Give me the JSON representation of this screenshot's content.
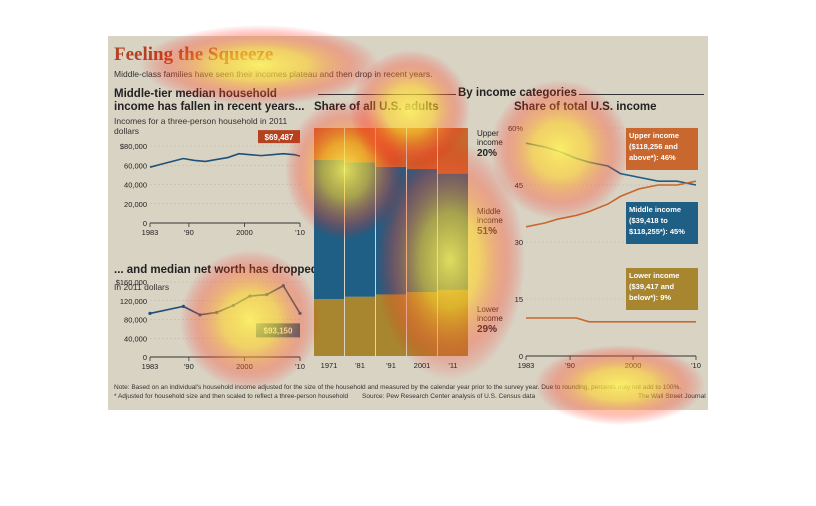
{
  "header": {
    "title": "Feeling the Squeeze",
    "subtitle": "Middle-class families have seen their incomes plateau and then drop in recent years."
  },
  "income_panel": {
    "heading": "Middle-tier median household income has fallen in recent years...",
    "unit": "Incomes for a three-person household in 2011 dollars"
  },
  "networth_panel": {
    "heading": "... and median net worth has dropped",
    "unit": "In 2011 dollars"
  },
  "categories_header": "By income categories",
  "share_panel": {
    "heading": "Share of all U.S. adults"
  },
  "total_panel": {
    "heading": "Share of total U.S. income"
  },
  "footer": {
    "note": "Note: Based on an individual's household income adjusted for the size of the household and measured by the calendar year prior to the survey year. Due to rounding, percents may not add to 100%.",
    "footnote": "* Adjusted for household size and then scaled to reflect a three-person household",
    "source": "Source: Pew Research Center analysis of U.S. Census data",
    "credit": "The Wall Street Journal"
  },
  "colors": {
    "background": "#d9d3c4",
    "income_line": "#1f4f7a",
    "upper": "#c8672e",
    "middle": "#1f5f85",
    "lower": "#a8862f",
    "callout": "#b4411f"
  },
  "chart_data": [
    {
      "type": "line",
      "title": "Middle-tier median household income has fallen in recent years...",
      "ylabel": "Incomes for a three-person household in 2011 dollars",
      "x": [
        1983,
        1985,
        1987,
        1989,
        1991,
        1993,
        1995,
        1997,
        1999,
        2001,
        2003,
        2005,
        2007,
        2009,
        2010
      ],
      "values": [
        58000,
        61000,
        64000,
        67000,
        65000,
        64000,
        66000,
        68000,
        72000,
        71000,
        70000,
        71000,
        72000,
        71000,
        69487
      ],
      "ylim": [
        0,
        80000
      ],
      "yticks": [
        "0",
        "20,000",
        "40,000",
        "60,000",
        "$80,000"
      ],
      "xticks": [
        "1983",
        "'90",
        "2000",
        "'10"
      ],
      "annotation": "$69,487"
    },
    {
      "type": "line",
      "title": "... and median net worth has dropped",
      "ylabel": "In 2011 dollars",
      "x": [
        1983,
        1989,
        1992,
        1995,
        1998,
        2001,
        2004,
        2007,
        2010
      ],
      "values": [
        93000,
        108000,
        90000,
        95000,
        110000,
        130000,
        133000,
        152000,
        93150
      ],
      "ylim": [
        0,
        160000
      ],
      "yticks": [
        "0",
        "40,000",
        "80,000",
        "120,000",
        "$160,000"
      ],
      "xticks": [
        "1983",
        "'90",
        "2000",
        "'10"
      ],
      "annotation": "$93,150"
    },
    {
      "type": "bar",
      "stacked": true,
      "title": "Share of all U.S. adults",
      "categories": [
        "1971",
        "'81",
        "'91",
        "2001",
        "'11"
      ],
      "series": [
        {
          "name": "Lower income",
          "values": [
            25,
            26,
            27,
            28,
            29
          ]
        },
        {
          "name": "Middle income",
          "values": [
            61,
            59,
            56,
            54,
            51
          ]
        },
        {
          "name": "Upper income",
          "values": [
            14,
            15,
            17,
            18,
            20
          ]
        }
      ],
      "labels": [
        {
          "name": "Upper income",
          "value": "20%"
        },
        {
          "name": "Middle income",
          "value": "51%"
        },
        {
          "name": "Lower income",
          "value": "29%"
        }
      ]
    },
    {
      "type": "line",
      "title": "Share of total U.S. income",
      "x": [
        1983,
        1986,
        1988,
        1991,
        1993,
        1996,
        1998,
        2001,
        2004,
        2007,
        2010
      ],
      "series": [
        {
          "name": "Middle income ($39,418 to $118,255*): 45%",
          "values": [
            56,
            55,
            54,
            52,
            51,
            50,
            48,
            47,
            46,
            46,
            45
          ]
        },
        {
          "name": "Upper income ($118,256 and above*): 46%",
          "values": [
            34,
            35,
            36,
            37,
            38,
            40,
            42,
            44,
            45,
            45,
            46
          ]
        },
        {
          "name": "Lower income ($39,417 and below*): 9%",
          "values": [
            10,
            10,
            10,
            10,
            9,
            9,
            9,
            9,
            9,
            9,
            9
          ]
        }
      ],
      "ylim": [
        0,
        60
      ],
      "yticks": [
        "0",
        "15",
        "30",
        "45",
        "60%"
      ],
      "xticks": [
        "1983",
        "'90",
        "2000",
        "'10"
      ]
    }
  ]
}
